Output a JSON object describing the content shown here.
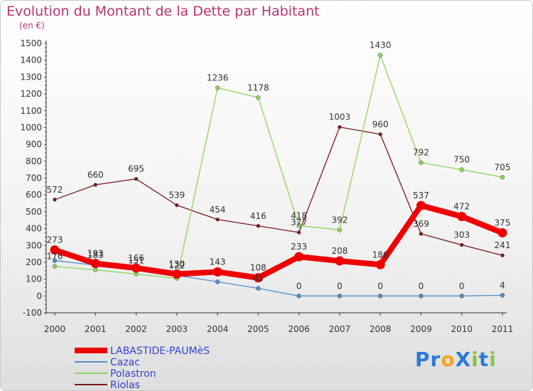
{
  "header": {
    "title": "Evolution du Montant de la Dette par Habitant",
    "unit": "(en €)"
  },
  "logo": {
    "text": "ProXiti",
    "letters": [
      "P",
      "r",
      "o",
      "X",
      "i",
      "t",
      "i"
    ],
    "colors": [
      "#2a7bd6",
      "#2a7bd6",
      "#f2a41a",
      "#2a7bd6",
      "#8ac43f",
      "#2a7bd6",
      "#8ac43f"
    ]
  },
  "chart_data": {
    "type": "line",
    "title": "Evolution du Montant de la Dette par Habitant",
    "ylabel": "(en €)",
    "xlabel": "",
    "categories": [
      "2000",
      "2001",
      "2002",
      "2003",
      "2004",
      "2005",
      "2006",
      "2007",
      "2008",
      "2009",
      "2010",
      "2011"
    ],
    "ylim": [
      -100,
      1500
    ],
    "yticks": [
      -100,
      0,
      100,
      200,
      300,
      400,
      500,
      600,
      700,
      800,
      900,
      1000,
      1100,
      1200,
      1300,
      1400,
      1500
    ],
    "grid": false,
    "legend_position": "bottom-left",
    "series": [
      {
        "name": "Riolas",
        "color": "#7a1a1a",
        "width": 1.3,
        "marker": 2.5,
        "values": [
          572,
          660,
          695,
          539,
          454,
          416,
          377,
          1003,
          960,
          369,
          303,
          241
        ],
        "labels": [
          "572",
          "660",
          "695",
          "539",
          "454",
          "416",
          "377",
          "1003",
          "960",
          "369",
          "303",
          "241"
        ]
      },
      {
        "name": "Polastron",
        "color": "#8ed45e",
        "width": 1.3,
        "marker": 3,
        "values": [
          176,
          155,
          130,
          104,
          1236,
          1178,
          418,
          392,
          1430,
          792,
          750,
          705
        ],
        "labels": [
          "176",
          "",
          "",
          "",
          "1236",
          "1178",
          "418",
          "392",
          "1430",
          "792",
          "750",
          "705"
        ]
      },
      {
        "name": "Cazac",
        "color": "#4f8fc9",
        "width": 1.3,
        "marker": 3,
        "values": [
          210,
          183,
          151,
          122,
          84,
          45,
          0,
          0,
          0,
          0,
          0,
          4
        ],
        "labels": [
          "",
          "183",
          "151",
          "122",
          "",
          "45",
          "0",
          "0",
          "0",
          "0",
          "0",
          "4"
        ]
      },
      {
        "name": "LABASTIDE-PAUMèS",
        "color": "#ee0000",
        "width": 8,
        "marker": 6.5,
        "values": [
          273,
          193,
          166,
          130,
          143,
          108,
          233,
          208,
          186,
          537,
          472,
          375
        ],
        "labels": [
          "273",
          "193",
          "166",
          "130",
          "143",
          "108",
          "233",
          "208",
          "186",
          "537",
          "472",
          "375"
        ]
      }
    ],
    "legend_order": [
      "LABASTIDE-PAUMèS",
      "Cazac",
      "Polastron",
      "Riolas"
    ]
  }
}
